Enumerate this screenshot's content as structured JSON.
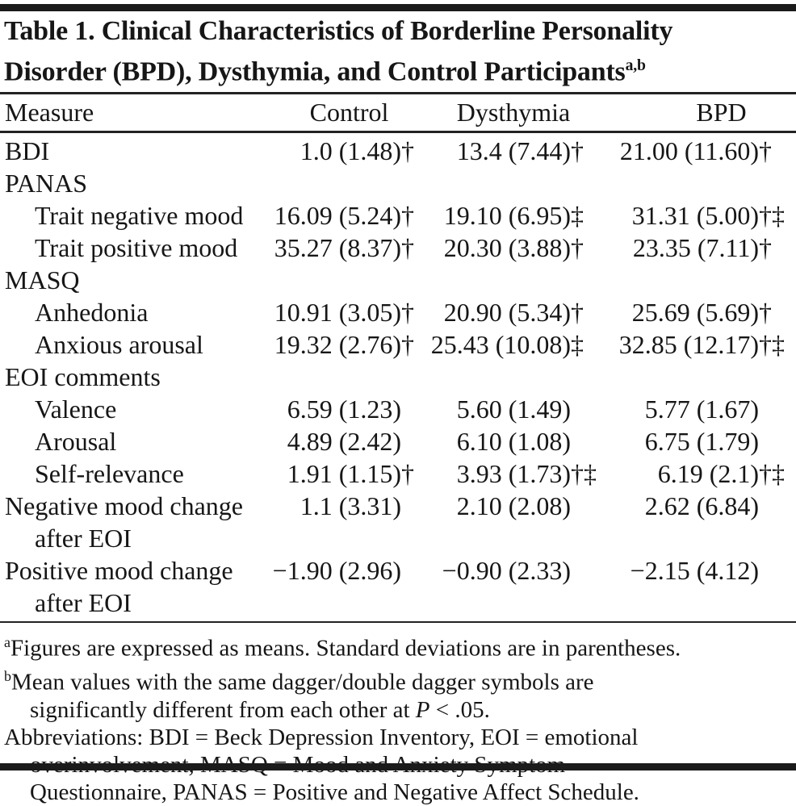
{
  "title": {
    "line1": "Table 1. Clinical Characteristics of Borderline Personality",
    "line2": "Disorder (BPD), Dysthymia, and Control Participants",
    "superscript": "a,b"
  },
  "table": {
    "columns": [
      "Measure",
      "Control",
      "Dysthymia",
      "BPD"
    ],
    "rows": [
      {
        "label": "BDI",
        "indent": false,
        "values": [
          {
            "v": "1.0 (1.48)",
            "s": "†"
          },
          {
            "v": "13.4 (7.44)",
            "s": "†"
          },
          {
            "v": "21.00 (11.60)",
            "s": "†"
          }
        ]
      },
      {
        "label": "PANAS",
        "indent": false,
        "values": []
      },
      {
        "label": "Trait negative mood",
        "indent": true,
        "values": [
          {
            "v": "16.09 (5.24)",
            "s": "†"
          },
          {
            "v": "19.10 (6.95)",
            "s": "‡"
          },
          {
            "v": "31.31 (5.00)",
            "s": "†‡"
          }
        ]
      },
      {
        "label": "Trait positive mood",
        "indent": true,
        "values": [
          {
            "v": "35.27 (8.37)",
            "s": "†"
          },
          {
            "v": "20.30 (3.88)",
            "s": "†"
          },
          {
            "v": "23.35 (7.11)",
            "s": "†"
          }
        ]
      },
      {
        "label": "MASQ",
        "indent": false,
        "values": []
      },
      {
        "label": "Anhedonia",
        "indent": true,
        "values": [
          {
            "v": "10.91 (3.05)",
            "s": "†"
          },
          {
            "v": "20.90 (5.34)",
            "s": "†"
          },
          {
            "v": "25.69 (5.69)",
            "s": "†"
          }
        ]
      },
      {
        "label": "Anxious arousal",
        "indent": true,
        "values": [
          {
            "v": "19.32 (2.76)",
            "s": "†"
          },
          {
            "v": "25.43 (10.08)",
            "s": "‡"
          },
          {
            "v": "32.85 (12.17)",
            "s": "†‡"
          }
        ]
      },
      {
        "label": "EOI comments",
        "indent": false,
        "values": []
      },
      {
        "label": "Valence",
        "indent": true,
        "values": [
          {
            "v": "6.59 (1.23)",
            "s": ""
          },
          {
            "v": "5.60 (1.49)",
            "s": ""
          },
          {
            "v": "5.77 (1.67)",
            "s": ""
          }
        ]
      },
      {
        "label": "Arousal",
        "indent": true,
        "values": [
          {
            "v": "4.89 (2.42)",
            "s": ""
          },
          {
            "v": "6.10 (1.08)",
            "s": ""
          },
          {
            "v": "6.75 (1.79)",
            "s": ""
          }
        ]
      },
      {
        "label": "Self-relevance",
        "indent": true,
        "values": [
          {
            "v": "1.91 (1.15)",
            "s": "†"
          },
          {
            "v": "3.93 (1.73)",
            "s": "†‡"
          },
          {
            "v": "6.19 (2.1)",
            "s": "†‡"
          }
        ]
      },
      {
        "label": "Negative mood change",
        "label2": "after EOI",
        "indent": false,
        "values": [
          {
            "v": "1.1 (3.31)",
            "s": ""
          },
          {
            "v": "2.10 (2.08)",
            "s": ""
          },
          {
            "v": "2.62 (6.84)",
            "s": ""
          }
        ]
      },
      {
        "label": "Positive mood change",
        "label2": "after EOI",
        "indent": false,
        "values": [
          {
            "v": "−1.90 (2.96)",
            "s": ""
          },
          {
            "v": "−0.90 (2.33)",
            "s": ""
          },
          {
            "v": "−2.15 (4.12)",
            "s": ""
          }
        ]
      }
    ]
  },
  "footnotes": [
    {
      "marker": "a",
      "lines": [
        "Figures are expressed as means. Standard deviations are in parentheses."
      ]
    },
    {
      "marker": "b",
      "lines": [
        "Mean values with the same dagger/double dagger symbols are",
        "significantly different from each other at P < .05."
      ]
    },
    {
      "marker": "",
      "lines": [
        "Abbreviations: BDI = Beck Depression Inventory, EOI = emotional",
        "overinvolvement, MASQ = Mood and Anxiety Symptom",
        "Questionnaire, PANAS = Positive and Negative Affect Schedule."
      ]
    }
  ],
  "colors": {
    "background": "#ffffff",
    "ink": "#161616",
    "rule": "#222222"
  }
}
